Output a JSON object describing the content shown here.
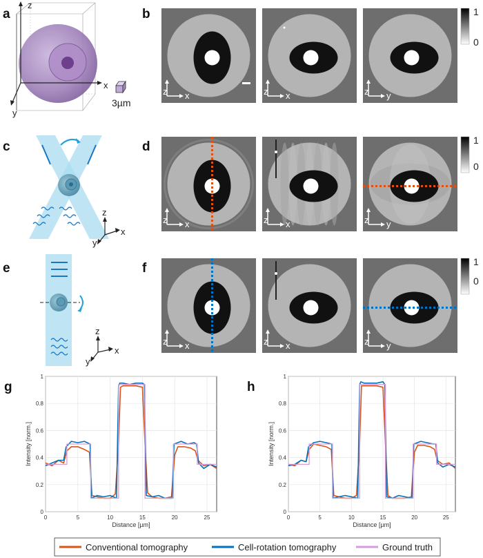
{
  "panels": {
    "a": "a",
    "b": "b",
    "c": "c",
    "d": "d",
    "e": "e",
    "f": "f",
    "g": "g",
    "h": "h"
  },
  "cube": {
    "x": "x",
    "y": "y",
    "z": "z",
    "scale": "3µm"
  },
  "colorbar": {
    "max": "1",
    "min": "0"
  },
  "slices": {
    "b": [
      {
        "v": "z",
        "h": "x"
      },
      {
        "v": "z",
        "h": "x"
      },
      {
        "v": "z",
        "h": "y"
      }
    ],
    "d": [
      {
        "v": "z",
        "h": "x"
      },
      {
        "v": "z",
        "h": "x"
      },
      {
        "v": "z",
        "h": "y"
      }
    ],
    "f": [
      {
        "v": "z",
        "h": "x"
      },
      {
        "v": "z",
        "h": "x"
      },
      {
        "v": "z",
        "h": "y"
      }
    ]
  },
  "schematic_axes": {
    "c": {
      "z": "z",
      "x": "x",
      "y": "y"
    },
    "e": {
      "z": "z",
      "x": "x",
      "y": "y"
    }
  },
  "colors": {
    "conventional": "#d95319",
    "cell_rotation": "#0072bd",
    "ground_truth": "#d59cdc",
    "cell_purple": "#9a7ab0",
    "beam_blue": "#a9dcf2"
  },
  "legend": {
    "conventional": "Conventional tomography",
    "cell_rotation": "Cell-rotation tomography",
    "ground_truth": "Ground truth"
  },
  "chart_data": [
    {
      "panel": "g",
      "type": "line",
      "xlabel": "Distance [µm]",
      "ylabel": "Intensity [norm.]",
      "xlim": [
        0,
        26.5
      ],
      "ylim": [
        0,
        1
      ],
      "xticks": [
        "0",
        "5",
        "10",
        "15",
        "20",
        "25"
      ],
      "yticks": [
        "0",
        "0.2",
        "0.4",
        "0.6",
        "0.8",
        "1"
      ],
      "grid": true,
      "series": [
        {
          "name": "Conventional tomography",
          "x": [
            0,
            1,
            2,
            2.8,
            3.3,
            4,
            5,
            6,
            6.8,
            7.2,
            8,
            9,
            10,
            10.8,
            11.3,
            11.6,
            12,
            13,
            14,
            15,
            15.4,
            15.8,
            16.5,
            17.5,
            18.5,
            19.5,
            20,
            20.5,
            21.5,
            22.5,
            23.2,
            23.6,
            24.5,
            25.5,
            26.5
          ],
          "y": [
            0.36,
            0.34,
            0.38,
            0.36,
            0.45,
            0.48,
            0.48,
            0.46,
            0.44,
            0.12,
            0.11,
            0.1,
            0.1,
            0.13,
            0.5,
            0.92,
            0.93,
            0.93,
            0.93,
            0.92,
            0.5,
            0.14,
            0.11,
            0.1,
            0.1,
            0.11,
            0.42,
            0.48,
            0.48,
            0.47,
            0.45,
            0.38,
            0.34,
            0.35,
            0.32
          ]
        },
        {
          "name": "Cell-rotation tomography",
          "x": [
            0,
            1,
            2,
            2.8,
            3.2,
            4,
            5,
            6,
            6.9,
            7.1,
            8,
            9,
            10,
            11,
            11.3,
            11.5,
            12,
            13,
            14,
            15,
            15.3,
            15.6,
            16.5,
            17.5,
            18.5,
            19.6,
            19.9,
            21,
            22,
            23,
            23.4,
            23.7,
            24.5,
            25.5,
            26.5
          ],
          "y": [
            0.34,
            0.36,
            0.38,
            0.38,
            0.48,
            0.52,
            0.51,
            0.52,
            0.5,
            0.1,
            0.12,
            0.11,
            0.12,
            0.1,
            0.93,
            0.95,
            0.95,
            0.94,
            0.95,
            0.95,
            0.94,
            0.12,
            0.11,
            0.12,
            0.1,
            0.1,
            0.5,
            0.52,
            0.5,
            0.51,
            0.5,
            0.36,
            0.32,
            0.35,
            0.33
          ]
        },
        {
          "name": "Ground truth",
          "x": [
            0,
            3.3,
            3.3,
            7.0,
            7.0,
            11.3,
            11.3,
            15.4,
            15.4,
            19.8,
            19.8,
            23.5,
            23.5,
            26.5
          ],
          "y": [
            0.35,
            0.35,
            0.5,
            0.5,
            0.1,
            0.1,
            0.94,
            0.94,
            0.1,
            0.1,
            0.5,
            0.5,
            0.35,
            0.35
          ]
        }
      ]
    },
    {
      "panel": "h",
      "type": "line",
      "xlabel": "Distance [µm]",
      "ylabel": "Intensity [norm.]",
      "xlim": [
        0,
        26.5
      ],
      "ylim": [
        0,
        1
      ],
      "xticks": [
        "0",
        "5",
        "10",
        "15",
        "20",
        "25"
      ],
      "yticks": [
        "0",
        "0.2",
        "0.4",
        "0.6",
        "0.8",
        "1"
      ],
      "grid": true,
      "series": [
        {
          "name": "Conventional tomography",
          "x": [
            0,
            1,
            2,
            2.8,
            3.3,
            4,
            5,
            6,
            6.8,
            7.2,
            8,
            9,
            10,
            10.8,
            11.3,
            11.6,
            12,
            13,
            14,
            15,
            15.4,
            15.8,
            16.5,
            17.5,
            18.5,
            19.5,
            20,
            20.5,
            21.5,
            22.5,
            23.2,
            23.6,
            24.5,
            25.5,
            26.5
          ],
          "y": [
            0.35,
            0.34,
            0.38,
            0.37,
            0.46,
            0.5,
            0.49,
            0.48,
            0.46,
            0.12,
            0.11,
            0.1,
            0.1,
            0.12,
            0.5,
            0.93,
            0.93,
            0.93,
            0.93,
            0.92,
            0.5,
            0.12,
            0.1,
            0.1,
            0.1,
            0.11,
            0.44,
            0.49,
            0.49,
            0.48,
            0.46,
            0.38,
            0.35,
            0.36,
            0.32
          ]
        },
        {
          "name": "Cell-rotation tomography",
          "x": [
            0,
            1,
            2,
            2.8,
            3.2,
            4,
            5,
            6,
            6.9,
            7.1,
            8,
            9,
            10,
            11,
            11.3,
            11.5,
            12,
            13,
            14,
            15,
            15.3,
            15.6,
            16.5,
            17.5,
            18.5,
            19.6,
            19.9,
            21,
            22,
            23,
            23.4,
            23.7,
            24.5,
            25.5,
            26.5
          ],
          "y": [
            0.34,
            0.35,
            0.38,
            0.37,
            0.48,
            0.51,
            0.52,
            0.51,
            0.5,
            0.1,
            0.11,
            0.12,
            0.11,
            0.1,
            0.94,
            0.96,
            0.95,
            0.95,
            0.95,
            0.96,
            0.94,
            0.11,
            0.1,
            0.12,
            0.11,
            0.1,
            0.5,
            0.52,
            0.51,
            0.5,
            0.5,
            0.36,
            0.33,
            0.35,
            0.33
          ]
        },
        {
          "name": "Ground truth",
          "x": [
            0,
            3.3,
            3.3,
            7.0,
            7.0,
            11.3,
            11.3,
            15.4,
            15.4,
            19.8,
            19.8,
            23.5,
            23.5,
            26.5
          ],
          "y": [
            0.35,
            0.35,
            0.5,
            0.5,
            0.1,
            0.1,
            0.94,
            0.94,
            0.1,
            0.1,
            0.5,
            0.5,
            0.35,
            0.35
          ]
        }
      ]
    }
  ]
}
